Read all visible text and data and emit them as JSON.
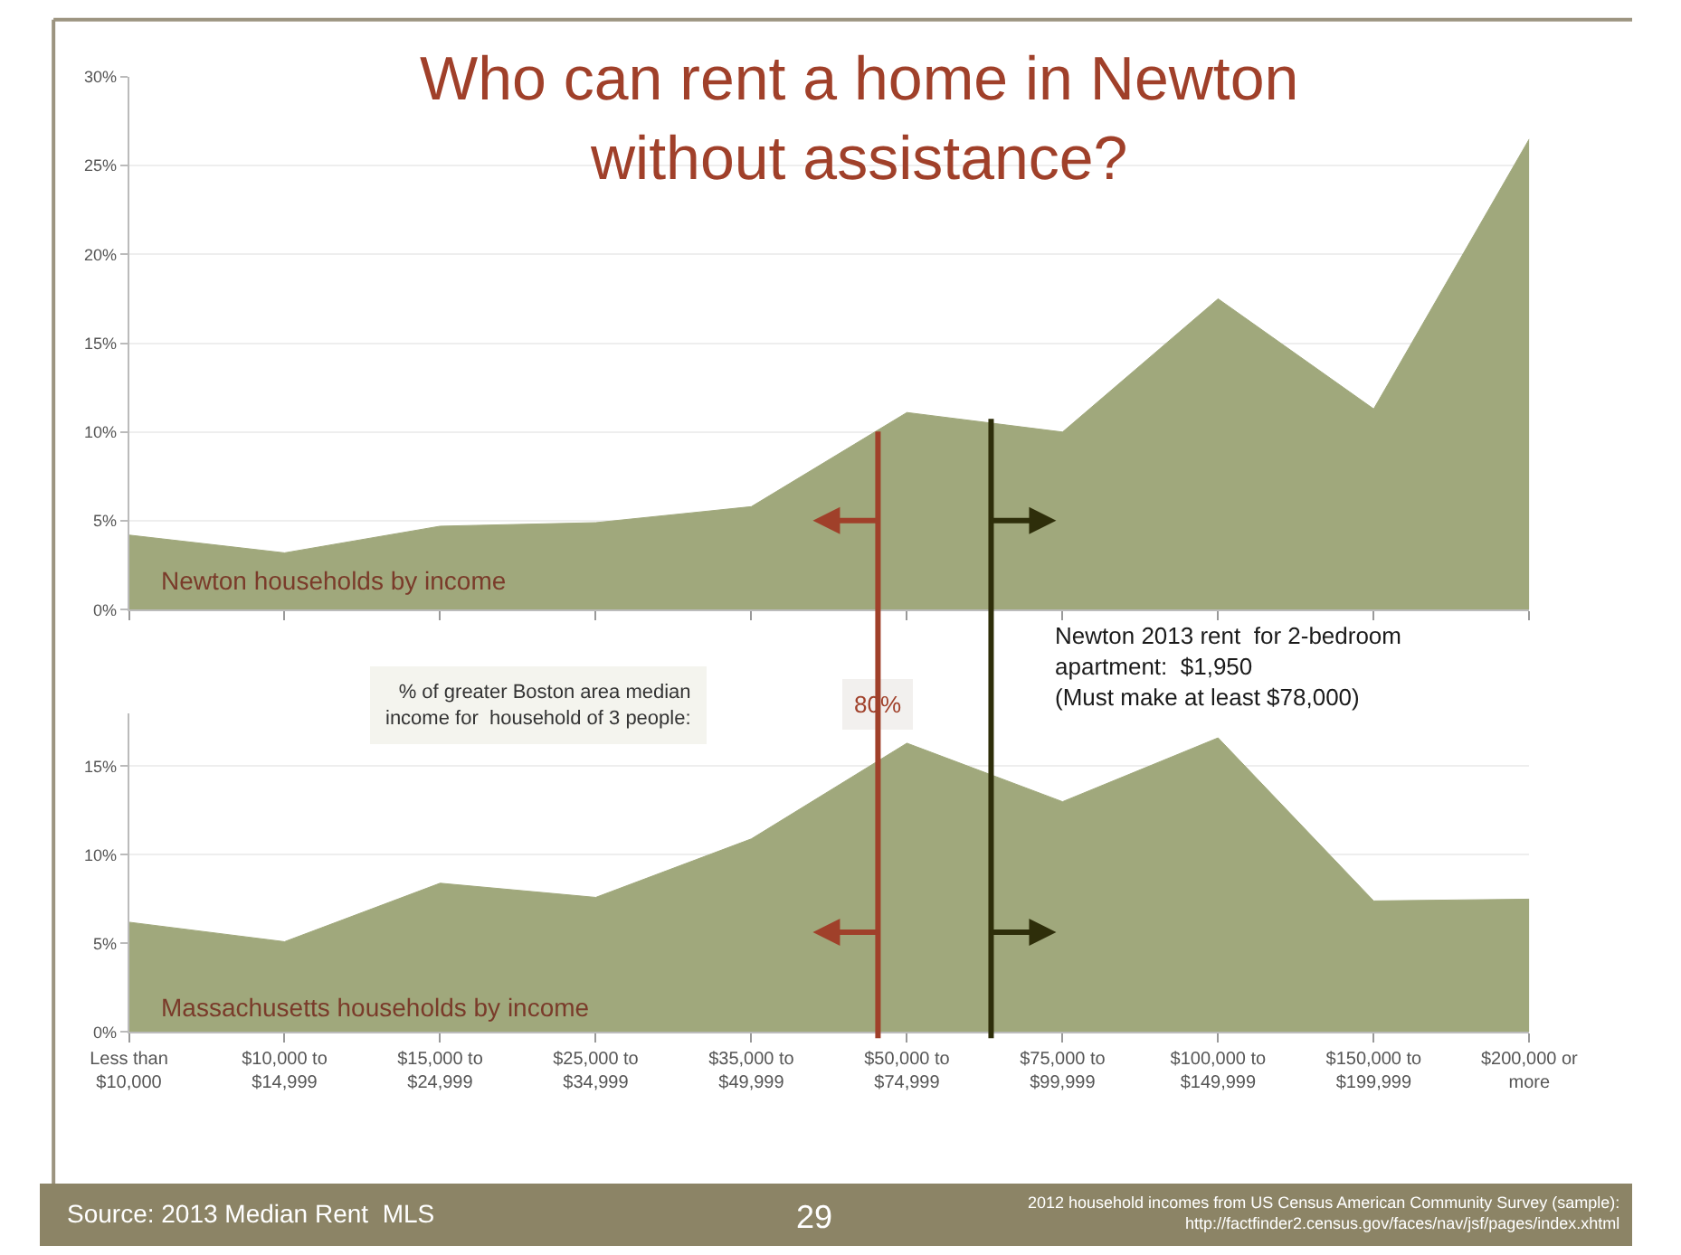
{
  "chart_data": [
    {
      "type": "area",
      "title": "Who can rent a home in Newton\nwithout assistance?",
      "categories": [
        null,
        null,
        null,
        null,
        null,
        null,
        null,
        null,
        null,
        null
      ],
      "series": [
        {
          "name": "Newton households by income",
          "color": "#a0a87c",
          "values": [
            4.2,
            3.2,
            4.7,
            4.9,
            5.8,
            11.1,
            10.0,
            17.5,
            11.3,
            26.5
          ]
        }
      ],
      "ylim": [
        0,
        30
      ],
      "yticks": [
        {
          "value": 0,
          "label": "0%"
        },
        {
          "value": 5,
          "label": "5%"
        },
        {
          "value": 10,
          "label": "10%"
        },
        {
          "value": 15,
          "label": "15%"
        },
        {
          "value": 20,
          "label": "20%"
        },
        {
          "value": 25,
          "label": "25%"
        },
        {
          "value": 30,
          "label": "30%"
        }
      ],
      "grid": "y",
      "tick_labels": "y"
    },
    {
      "type": "area",
      "categories": [
        "Less than $10,000",
        "$10,000 to $14,999",
        "$15,000 to $24,999",
        "$25,000 to $34,999",
        "$35,000 to $49,999",
        "$50,000 to $74,999",
        "$75,000 to $99,999",
        "$100,000 to $149,999",
        "$150,000 to $199,999",
        "$200,000 or more"
      ],
      "series": [
        {
          "name": "Massachusetts households by income",
          "color": "#a0a87c",
          "values": [
            6.2,
            5.1,
            8.4,
            7.6,
            10.9,
            16.3,
            13.0,
            16.6,
            7.4,
            7.5
          ]
        }
      ],
      "ylim": [
        0,
        18
      ],
      "yticks": [
        {
          "value": 0,
          "label": "0%"
        },
        {
          "value": 5,
          "label": "5%"
        },
        {
          "value": 10,
          "label": "10%"
        },
        {
          "value": 15,
          "label": "15%"
        }
      ],
      "grid": "y",
      "annotations": [
        "% of greater Boston area median\nincome for  household of 3 people:",
        "80%",
        "Newton 2013 rent  for 2-bedroom\napartment:  $1,950\n(Must make at least $78,000)",
        "Source: 2013 Median Rent  MLS",
        "29",
        "2012 household incomes from US Census American Community Survey (sample):\nhttp://factfinder2.census.gov/faces/nav/jsf/pages/index.xhtml"
      ]
    }
  ]
}
